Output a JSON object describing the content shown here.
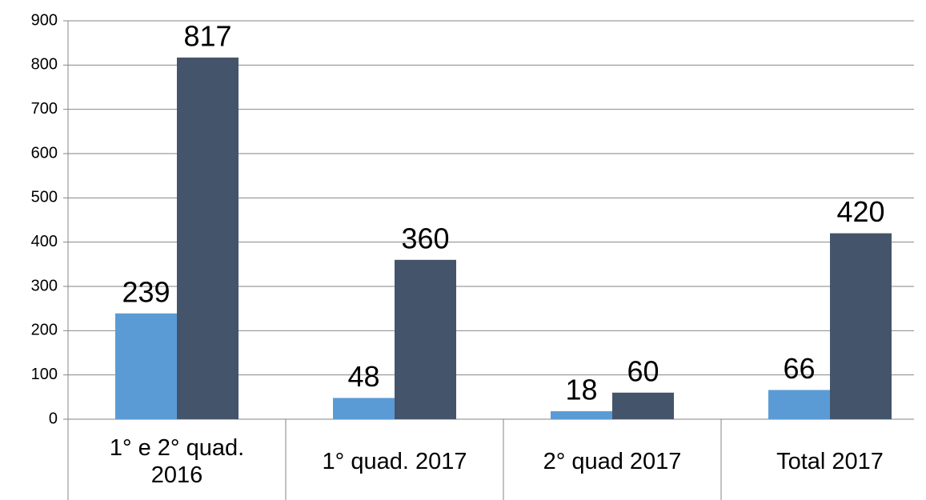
{
  "chart_data": {
    "type": "bar",
    "categories": [
      "1° e 2° quad. 2016",
      "1° quad. 2017",
      "2° quad 2017",
      "Total 2017"
    ],
    "series": [
      {
        "color": "#5b9bd5",
        "values": [
          239,
          48,
          18,
          66
        ]
      },
      {
        "color": "#44546a",
        "values": [
          817,
          360,
          60,
          420
        ]
      }
    ],
    "ylim": [
      0,
      900
    ],
    "yticks": [
      0,
      100,
      200,
      300,
      400,
      500,
      600,
      700,
      800,
      900
    ],
    "grid": true
  }
}
